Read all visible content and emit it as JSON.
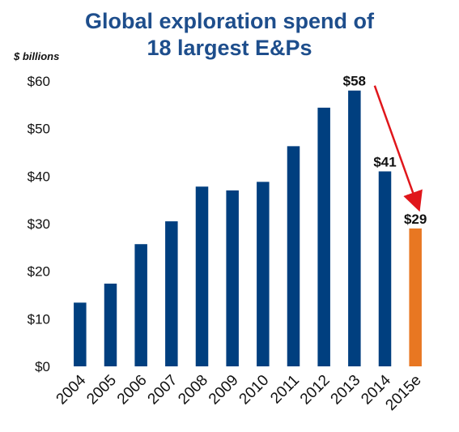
{
  "title_line1": "Global exploration spend of",
  "title_line2": "18 largest E&Ps",
  "unit_label": "$ billions",
  "chart_data": {
    "type": "bar",
    "title": "Global exploration spend of 18 largest E&Ps",
    "ylabel": "$ billions",
    "categories": [
      "2004",
      "2005",
      "2006",
      "2007",
      "2008",
      "2009",
      "2010",
      "2011",
      "2012",
      "2013",
      "2014",
      "2015e"
    ],
    "values": [
      13.4,
      17.4,
      25.7,
      30.5,
      37.8,
      37.0,
      38.8,
      46.3,
      54.4,
      58,
      41,
      29
    ],
    "ylim": [
      0,
      60
    ],
    "yticks": [
      0,
      10,
      20,
      30,
      40,
      50,
      60
    ],
    "ytick_labels": [
      "$0",
      "$10",
      "$20",
      "$30",
      "$40",
      "$50",
      "$60"
    ],
    "data_labels": [
      {
        "category": "2013",
        "text": "$58"
      },
      {
        "category": "2014",
        "text": "$41"
      },
      {
        "category": "2015e",
        "text": "$29"
      }
    ],
    "colors": {
      "bar": "#003f7f",
      "highlight": "#e87722",
      "arrow": "#e0161b"
    },
    "highlight_category": "2015e",
    "annotation": {
      "type": "arrow",
      "from": "2013",
      "to": "2015e"
    },
    "grid": false
  }
}
